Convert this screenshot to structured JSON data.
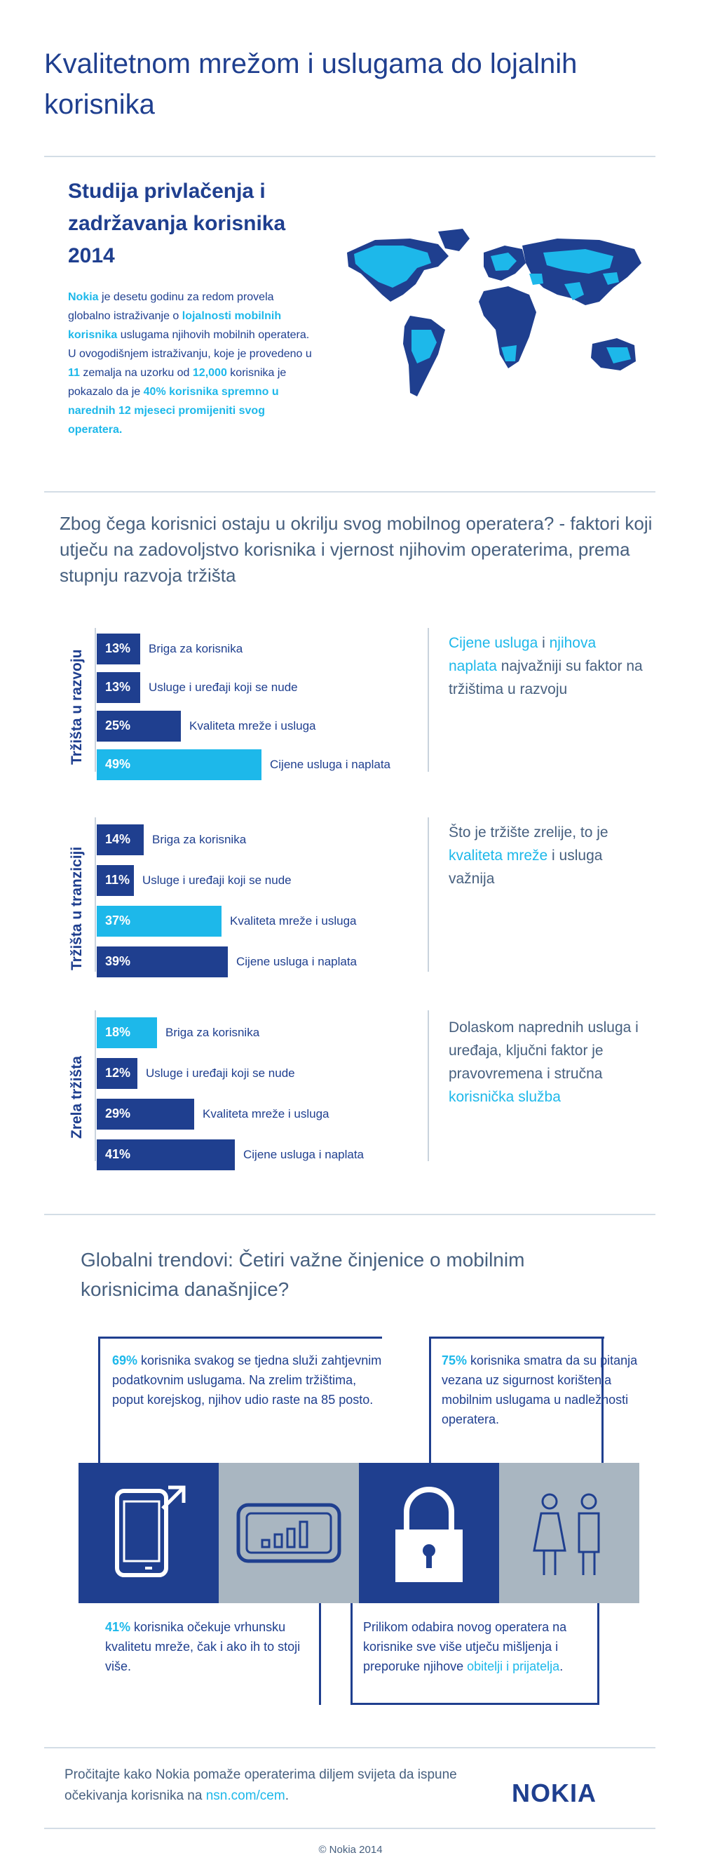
{
  "header": {
    "title": "Kvalitetnom mrežom i uslugama do lojalnih korisnika"
  },
  "study": {
    "title": "Studija privlačenja i zadržavanja korisnika 2014",
    "p_nokia": "Nokia",
    "p1": " je desetu godinu za redom provela globalno istraživanje o ",
    "p_loyalty": "lojalnosti mobilnih korisnika",
    "p2": " uslugama njihovih mobilnih operatera. U ovogodišnjem istraživanju, koje je provedeno u ",
    "p_11": "11",
    "p3": " zemalja na uzorku od ",
    "p_12000": "12,000",
    "p4": " korisnika je pokazalo da je ",
    "p_40": "40% korisnika spremno u narednih 12 mjeseci promijeniti svog operatera.",
    "map_icon": "world-map-icon"
  },
  "question": {
    "text": "Zbog čega korisnici ostaju u okrilju svog mobilnog operatera? - faktori koji utječu na zadovoljstvo korisnika i vjernost njihovim operaterima, prema stupnju razvoja tržišta"
  },
  "chart_data": [
    {
      "type": "bar",
      "title": "Tržišta u razvoju",
      "categories": [
        "Briga za korisnika",
        "Usluge i uređaji koji se nude",
        "Kvaliteta mreže i usluga",
        "Cijene usluga i naplata"
      ],
      "values": [
        13,
        13,
        25,
        49
      ],
      "value_labels": [
        "13%",
        "13%",
        "25%",
        "49%"
      ],
      "highlight": [
        false,
        false,
        false,
        true
      ]
    },
    {
      "type": "bar",
      "title": "Tržišta u tranziciji",
      "categories": [
        "Briga za korisnika",
        "Usluge i uređaji koji se nude",
        "Kvaliteta mreže i usluga",
        "Cijene usluga i naplata"
      ],
      "values": [
        14,
        11,
        37,
        39
      ],
      "value_labels": [
        "14%",
        "11%",
        "37%",
        "39%"
      ],
      "highlight": [
        false,
        false,
        true,
        false
      ]
    },
    {
      "type": "bar",
      "title": "Zrela tržišta",
      "categories": [
        "Briga za korisnika",
        "Usluge i uređaji koji se nude",
        "Kvaliteta mreže i usluga",
        "Cijene usluga i naplata"
      ],
      "values": [
        18,
        12,
        29,
        41
      ],
      "value_labels": [
        "18%",
        "12%",
        "29%",
        "41%"
      ],
      "highlight": [
        true,
        false,
        false,
        false
      ]
    }
  ],
  "notes": {
    "n1_a": "Cijene usluga",
    "n1_b": " i ",
    "n1_c": "njihova naplata",
    "n1_d": " najvažniji su faktor na tržištima u razvoju",
    "n2_a": "Što je tržište zrelije, to je ",
    "n2_b": "kvaliteta mreže",
    "n2_c": " i usluga važnija",
    "n3_a": "Dolaskom naprednih usluga i uređaja, ključni faktor je pravovremena i stručna ",
    "n3_b": "korisnička služba"
  },
  "trends": {
    "title": "Globalni trendovi: Četiri važne činjenice o mobilnim korisnicima današnjice?",
    "t1_pct": "69%",
    "t1_text": " korisnika svakog se tjedna služi zahtjevnim podatkovnim uslugama. Na zrelim tržištima, poput korejskog, njihov udio raste na 85 posto.",
    "t2_pct": "75%",
    "t2_text": " korisnika smatra da su pitanja vezana uz sigurnost korištenja mobilnim uslugama u nadležnosti operatera.",
    "t3_pct": "41%",
    "t3_text": " korisnika očekuje vrhunsku kvalitetu mreže, čak i ako ih to stoji više.",
    "t4_text": "Prilikom odabira novog operatera na korisnike sve više utječu mišljenja i preporuke njihove ",
    "t4_hl": "obitelji i prijatelja",
    "t4_end": ".",
    "icons": [
      "smartphone-icon",
      "signal-bars-icon",
      "padlock-icon",
      "family-icon"
    ],
    "colors": {
      "navy": "#1f3f8f",
      "cyan": "#1db8ea",
      "grey": "#a9b6c1"
    }
  },
  "footer": {
    "text_a": "Pročitajte kako Nokia pomaže operaterima diljem svijeta da ispune očekivanja korisnika na ",
    "link": "nsn.com/cem",
    "text_b": ".",
    "logo": "NOKIA",
    "copyright": "© Nokia 2014"
  }
}
